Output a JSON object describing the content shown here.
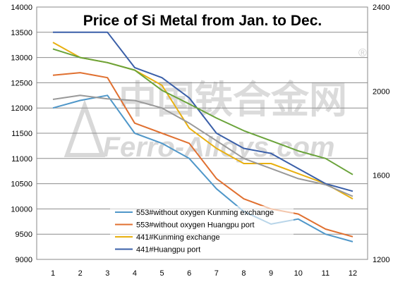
{
  "chart_data": {
    "type": "line",
    "title": "Price of Si Metal from Jan. to Dec.",
    "x": [
      1,
      2,
      3,
      4,
      5,
      6,
      7,
      8,
      9,
      10,
      11,
      12
    ],
    "y_left_ticks": [
      9000,
      9500,
      10000,
      10500,
      11000,
      11500,
      12000,
      12500,
      13000,
      13500,
      14000
    ],
    "y_left_lim": [
      9000,
      14000
    ],
    "y_right_ticks": [
      1200,
      1600,
      2000,
      2400
    ],
    "y_right_lim": [
      1200,
      2400
    ],
    "grid": true,
    "legend_position": "bottom-center",
    "watermark": {
      "text_cn": "中国铁合金网",
      "text_en": "Ferro-Alloys.com",
      "mark": "®"
    },
    "series": [
      {
        "name": "553#without oxygen Kunming exchange",
        "axis": "left",
        "color": "#4f97c9",
        "values": [
          12000,
          12150,
          12250,
          11500,
          11300,
          11000,
          10400,
          9950,
          9700,
          9800,
          9500,
          9350
        ]
      },
      {
        "name": "553#without oxygen Huangpu port",
        "axis": "left",
        "color": "#e07030",
        "values": [
          12650,
          12700,
          12600,
          11700,
          11500,
          11300,
          10600,
          10200,
          10000,
          9900,
          9600,
          9450
        ]
      },
      {
        "name": "441#Kunming exchange",
        "axis": "left",
        "color": "#e8b010",
        "values": [
          13300,
          13000,
          12900,
          12750,
          12450,
          11600,
          11200,
          10900,
          10900,
          10700,
          10500,
          10200
        ]
      },
      {
        "name": "441#Huangpu port",
        "axis": "left",
        "color": "#3a5fa8",
        "values": [
          13500,
          13500,
          13500,
          12800,
          12600,
          12200,
          11500,
          11200,
          11100,
          10800,
          10500,
          10350
        ]
      },
      {
        "name": "",
        "axis": "left",
        "color": "#999999",
        "values": [
          12170,
          12250,
          12180,
          12150,
          12000,
          11700,
          11350,
          11000,
          10800,
          10600,
          10480,
          10250
        ]
      },
      {
        "name": "",
        "axis": "left",
        "color": "#6aa33a",
        "values": [
          13170,
          13000,
          12900,
          12750,
          12350,
          12080,
          11800,
          11550,
          11350,
          11150,
          11000,
          10680
        ]
      }
    ]
  }
}
